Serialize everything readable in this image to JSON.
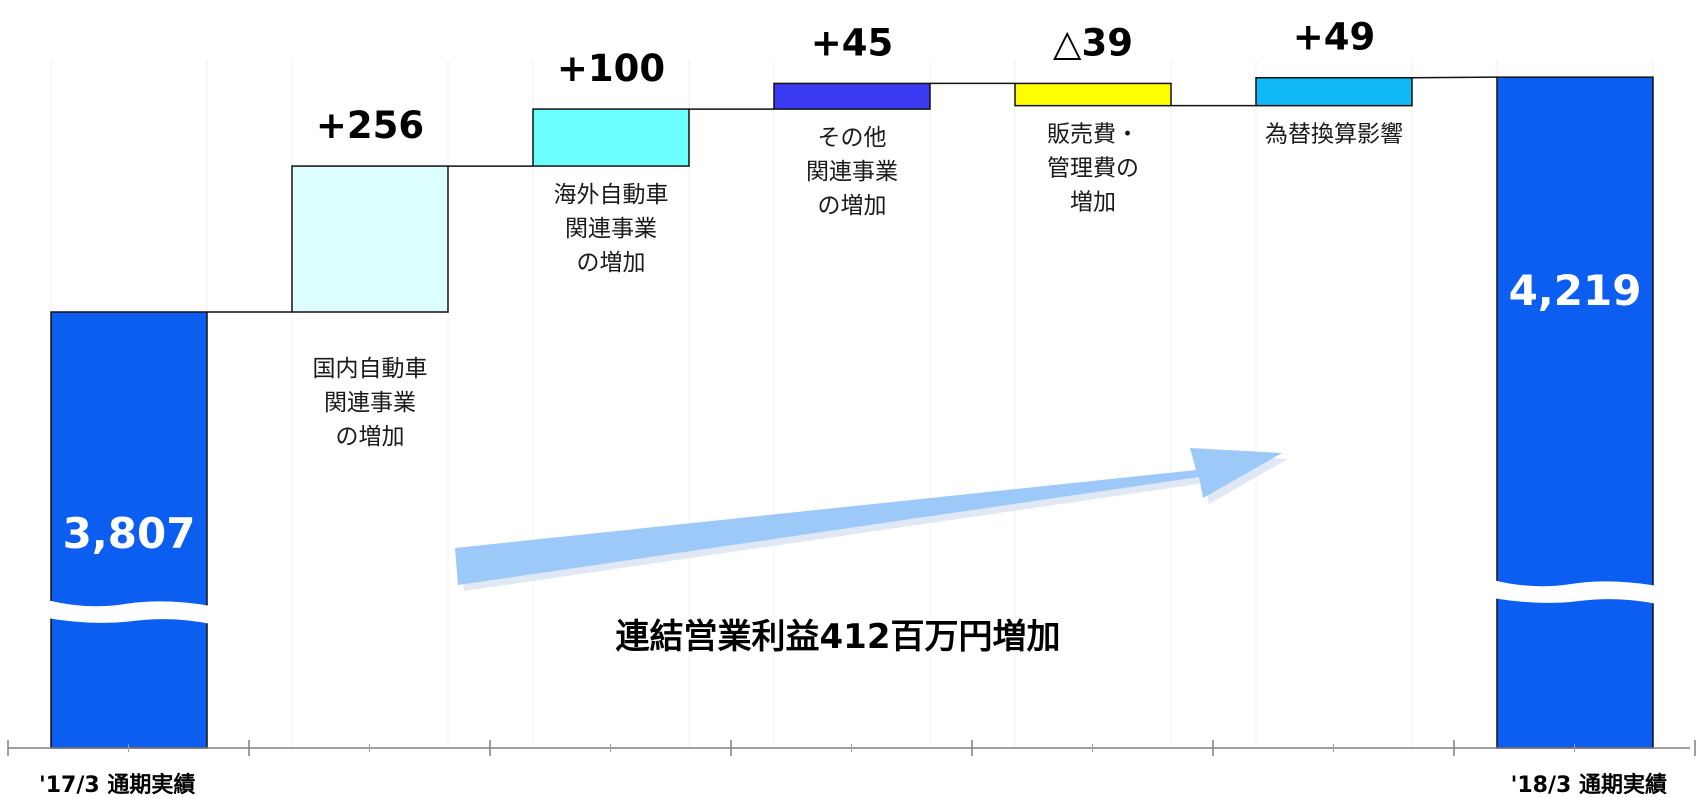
{
  "chart_data": {
    "type": "bar",
    "subtype": "waterfall",
    "start": {
      "label": "'17/3 通期実績",
      "value": 3807,
      "display": "3,807",
      "color": "#0c5ef0"
    },
    "end": {
      "label": "'18/3 通期実績",
      "value": 4219,
      "display": "4,219",
      "color": "#0c5ef0"
    },
    "steps": [
      {
        "label": "国内自動車\n関連事業\nの増加",
        "delta": 256,
        "display": "+256",
        "color": "#dcfefe"
      },
      {
        "label": "海外自動車\n関連事業\nの増加",
        "delta": 100,
        "display": "+100",
        "color": "#6cfefe"
      },
      {
        "label": "その他\n関連事業\nの増加",
        "delta": 45,
        "display": "+45",
        "color": "#3a3af2"
      },
      {
        "label": "販売費・\n管理費の\n増加",
        "delta": -39,
        "display": "△39",
        "color": "#fefe00"
      },
      {
        "label": "為替換算影響",
        "delta": 49,
        "display": "+49",
        "color": "#10b8f6"
      }
    ],
    "summary_text": "連結営業利益412百万円増加",
    "arrow_color": "#9cc9f8",
    "axis_broken": true,
    "grid": false
  }
}
